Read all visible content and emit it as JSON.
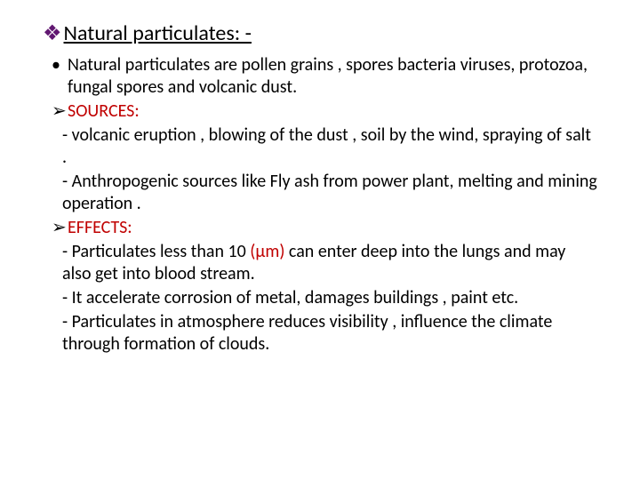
{
  "title": "Natural particulates: -",
  "colors": {
    "diamond_bullet": "#611771",
    "heading": "#c00000",
    "text": "#000000",
    "background": "#ffffff"
  },
  "typography": {
    "title_fontsize": 24,
    "body_fontsize": 20,
    "font_family": "Calibri"
  },
  "items": {
    "intro": "Natural particulates are pollen grains , spores bacteria viruses, protozoa, fungal spores and volcanic dust.",
    "sources_label": "SOURCES:",
    "sources_1": "- volcanic eruption , blowing of the dust , soil by the wind, spraying of salt .",
    "sources_2": "-  Anthropogenic sources like Fly ash from power plant, melting and mining operation .",
    "effects_label": "EFFECTS:",
    "effects_1_pre": "- Particulates less than 10 ",
    "effects_1_unit": "(µm)",
    "effects_1_post": " can enter deep into the lungs and may also get into blood stream.",
    "effects_2": "-  It accelerate corrosion of metal, damages buildings , paint etc.",
    "effects_3": "-  Particulates in atmosphere reduces visibility , influence the climate through formation of clouds."
  }
}
